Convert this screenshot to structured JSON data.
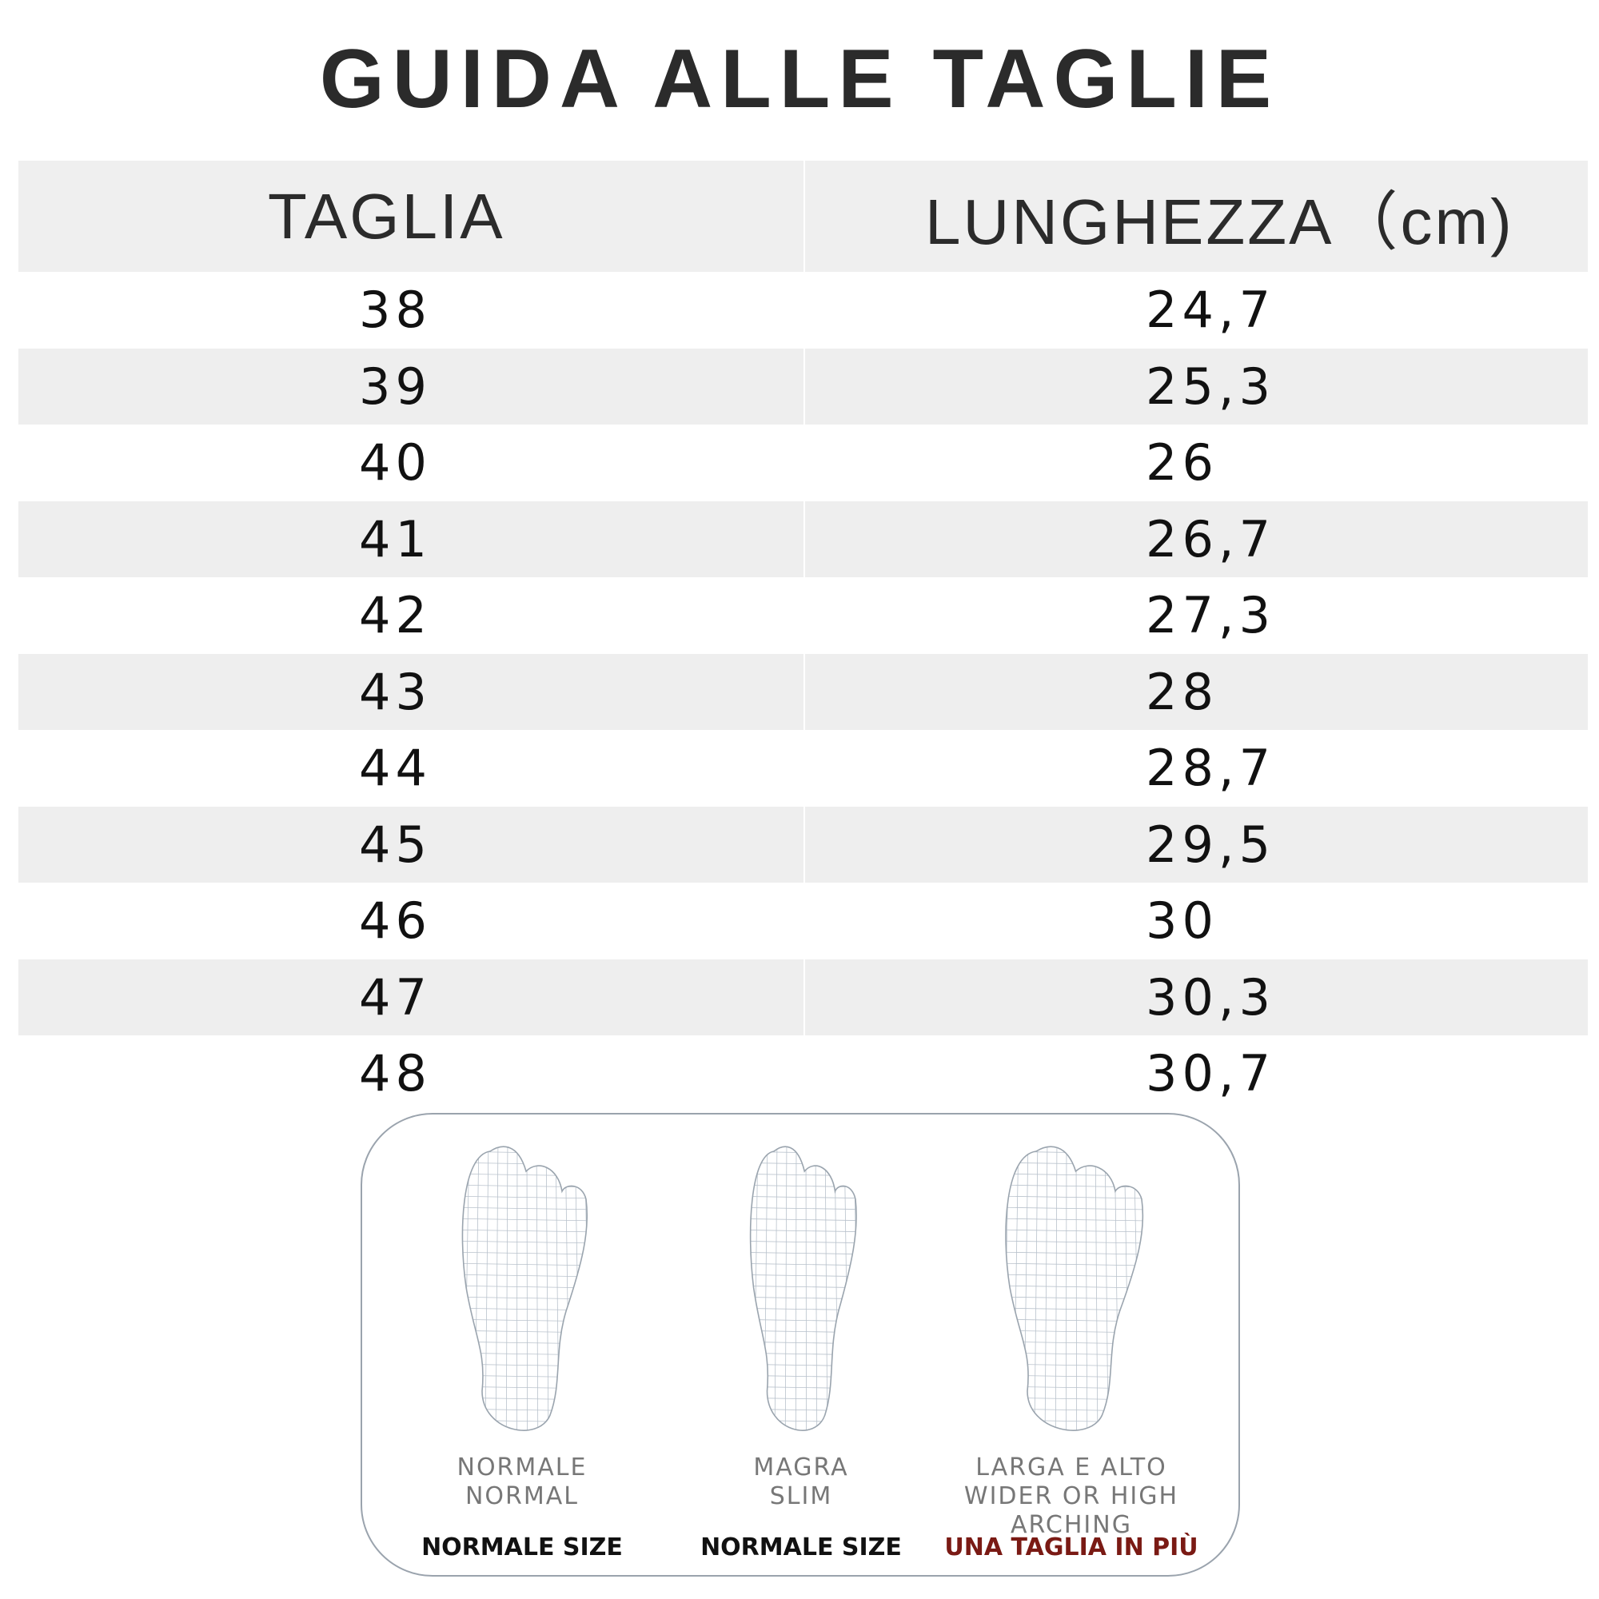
{
  "title": "GUIDA ALLE TAGLIE",
  "table": {
    "headers": [
      "TAGLIA",
      "LUNGHEZZA（cm)"
    ],
    "rows": [
      [
        "38",
        "24,7"
      ],
      [
        "39",
        "25,3"
      ],
      [
        "40",
        "26"
      ],
      [
        "41",
        "26,7"
      ],
      [
        "42",
        "27,3"
      ],
      [
        "43",
        "28"
      ],
      [
        "44",
        "28,7"
      ],
      [
        "45",
        "29,5"
      ],
      [
        "46",
        "30"
      ],
      [
        "47",
        "30,3"
      ],
      [
        "48",
        "30,7"
      ]
    ]
  },
  "foot_types": [
    {
      "icon": "foot-normal-icon",
      "line1": "NORMALE",
      "line2": "NORMAL",
      "size": "NORMALE SIZE",
      "size_color": "#111111"
    },
    {
      "icon": "foot-slim-icon",
      "line1": "MAGRA",
      "line2": "SLIM",
      "size": "NORMALE SIZE",
      "size_color": "#111111"
    },
    {
      "icon": "foot-wide-icon",
      "line1": "LARGA E ALTO",
      "line2": "WIDER OR HIGH ARCHING",
      "size": "UNA TAGLIA IN PIÙ",
      "size_color": "#7a1a14"
    }
  ]
}
